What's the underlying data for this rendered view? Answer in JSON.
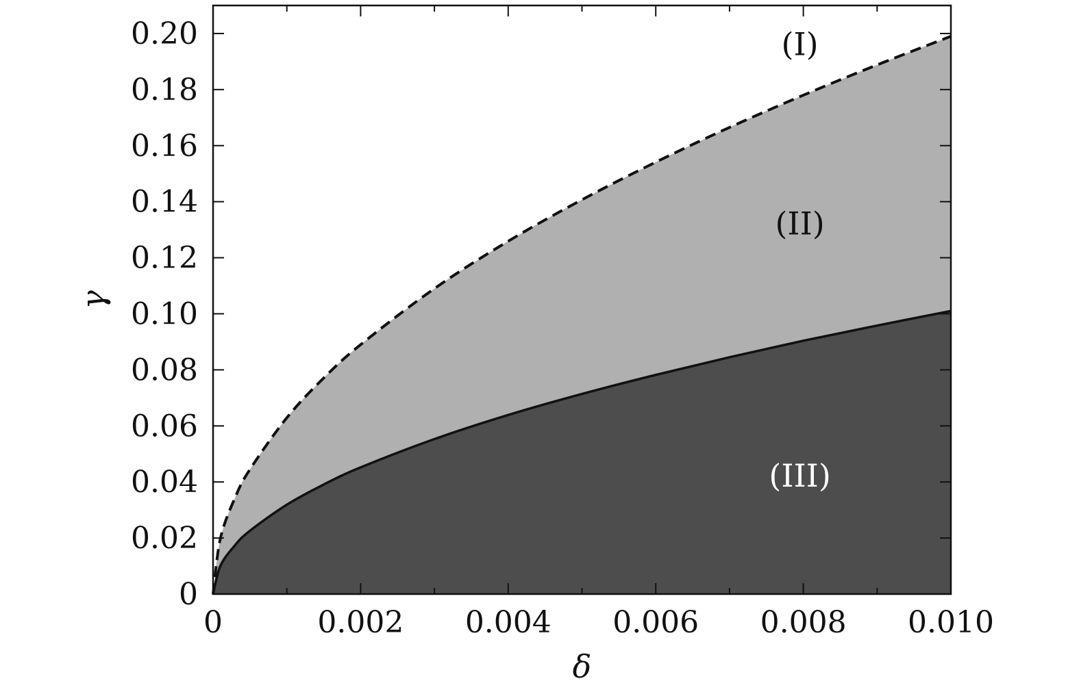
{
  "chart_data": {
    "type": "area",
    "title": "",
    "xlabel": "δ",
    "ylabel": "γ",
    "xlim": [
      0,
      0.01
    ],
    "ylim": [
      0,
      0.21
    ],
    "x_ticks_major": [
      {
        "value": 0,
        "label": "0"
      },
      {
        "value": 0.002,
        "label": "0.002"
      },
      {
        "value": 0.004,
        "label": "0.004"
      },
      {
        "value": 0.006,
        "label": "0.006"
      },
      {
        "value": 0.008,
        "label": "0.008"
      },
      {
        "value": 0.01,
        "label": "0.010"
      }
    ],
    "x_ticks_minor": [
      0.001,
      0.003,
      0.005,
      0.007,
      0.009
    ],
    "y_ticks": [
      {
        "value": 0,
        "label": "0"
      },
      {
        "value": 0.02,
        "label": "0.02"
      },
      {
        "value": 0.04,
        "label": "0.04"
      },
      {
        "value": 0.06,
        "label": "0.06"
      },
      {
        "value": 0.08,
        "label": "0.08"
      },
      {
        "value": 0.1,
        "label": "0.10"
      },
      {
        "value": 0.12,
        "label": "0.12"
      },
      {
        "value": 0.14,
        "label": "0.14"
      },
      {
        "value": 0.16,
        "label": "0.16"
      },
      {
        "value": 0.18,
        "label": "0.18"
      },
      {
        "value": 0.2,
        "label": "0.20"
      }
    ],
    "grid": false,
    "series": [
      {
        "style": "dashed",
        "color": "#111111",
        "x": [
          0,
          0.0001,
          0.0003,
          0.0005,
          0.001,
          0.0015,
          0.002,
          0.003,
          0.004,
          0.005,
          0.006,
          0.007,
          0.008,
          0.009,
          0.01
        ],
        "y": [
          0,
          0.0199,
          0.0345,
          0.0445,
          0.0629,
          0.0771,
          0.089,
          0.109,
          0.1259,
          0.1407,
          0.1541,
          0.1665,
          0.178,
          0.1888,
          0.199
        ]
      },
      {
        "style": "solid",
        "color": "#111111",
        "x": [
          0,
          0.0001,
          0.0003,
          0.0005,
          0.001,
          0.0015,
          0.002,
          0.003,
          0.004,
          0.005,
          0.006,
          0.007,
          0.008,
          0.009,
          0.01
        ],
        "y": [
          0,
          0.0101,
          0.0175,
          0.0226,
          0.0319,
          0.0391,
          0.0452,
          0.0553,
          0.0639,
          0.0714,
          0.0782,
          0.0845,
          0.0904,
          0.0958,
          0.101
        ]
      }
    ],
    "regions": [
      {
        "label": "(I)",
        "fill": "#ffffff",
        "text_color": "#111111",
        "anchor": {
          "x": 0.008,
          "y": 0.196
        }
      },
      {
        "label": "(II)",
        "fill": "#b0b0b0",
        "text_color": "#111111",
        "anchor": {
          "x": 0.008,
          "y": 0.132
        }
      },
      {
        "label": "(III)",
        "fill": "#4d4d4d",
        "text_color": "#ffffff",
        "anchor": {
          "x": 0.008,
          "y": 0.042
        }
      }
    ]
  }
}
